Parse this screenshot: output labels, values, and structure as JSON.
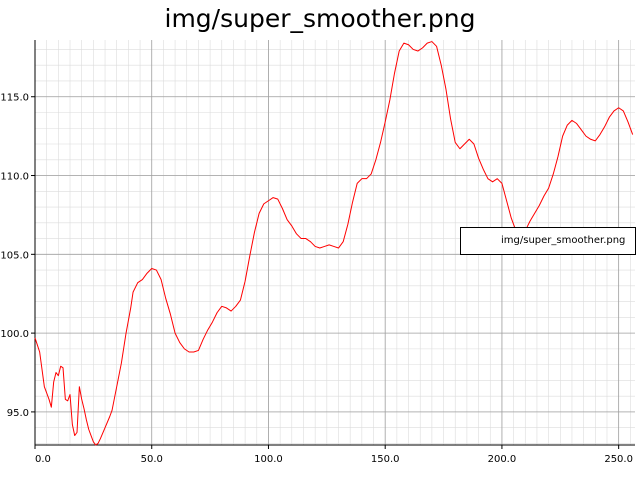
{
  "chart_data": {
    "type": "line",
    "title": "img/super_smoother.png",
    "xlabel": "",
    "ylabel": "",
    "xlim": [
      0,
      257
    ],
    "ylim": [
      92.9,
      118.6
    ],
    "x_ticks": [
      0,
      50,
      100,
      150,
      200,
      250
    ],
    "x_tick_labels": [
      "0.0",
      "50.0",
      "100.0",
      "150.0",
      "200.0",
      "250.0"
    ],
    "y_ticks": [
      95,
      100,
      105,
      110,
      115
    ],
    "y_tick_labels": [
      "95.0",
      "100.0",
      "105.0",
      "110.0",
      "115.0"
    ],
    "grid": true,
    "legend": {
      "position": "right",
      "entries": [
        "img/super_smoother.png"
      ]
    },
    "series": [
      {
        "name": "img/super_smoother.png",
        "color": "#ff0000",
        "points": [
          [
            0,
            99.7
          ],
          [
            2,
            98.8
          ],
          [
            4,
            96.6
          ],
          [
            6,
            95.8
          ],
          [
            7,
            95.3
          ],
          [
            8,
            96.9
          ],
          [
            9,
            97.5
          ],
          [
            10,
            97.3
          ],
          [
            11,
            97.9
          ],
          [
            12,
            97.8
          ],
          [
            13,
            95.8
          ],
          [
            14,
            95.7
          ],
          [
            15,
            96.1
          ],
          [
            16,
            94.2
          ],
          [
            17,
            93.5
          ],
          [
            18,
            93.7
          ],
          [
            19,
            96.6
          ],
          [
            20,
            95.8
          ],
          [
            21,
            95.2
          ],
          [
            22,
            94.5
          ],
          [
            23,
            93.9
          ],
          [
            24,
            93.5
          ],
          [
            25,
            93.1
          ],
          [
            26,
            92.9
          ],
          [
            27,
            93.0
          ],
          [
            28,
            93.3
          ],
          [
            30,
            94.0
          ],
          [
            32,
            94.7
          ],
          [
            33,
            95.1
          ],
          [
            35,
            96.6
          ],
          [
            37,
            98.1
          ],
          [
            39,
            100.0
          ],
          [
            41,
            101.6
          ],
          [
            42,
            102.6
          ],
          [
            44,
            103.2
          ],
          [
            46,
            103.4
          ],
          [
            48,
            103.8
          ],
          [
            50,
            104.1
          ],
          [
            52,
            104.0
          ],
          [
            54,
            103.4
          ],
          [
            56,
            102.2
          ],
          [
            58,
            101.2
          ],
          [
            60,
            100.0
          ],
          [
            62,
            99.4
          ],
          [
            64,
            99.0
          ],
          [
            66,
            98.8
          ],
          [
            68,
            98.8
          ],
          [
            70,
            98.9
          ],
          [
            72,
            99.6
          ],
          [
            74,
            100.2
          ],
          [
            76,
            100.7
          ],
          [
            78,
            101.3
          ],
          [
            80,
            101.7
          ],
          [
            82,
            101.6
          ],
          [
            84,
            101.4
          ],
          [
            86,
            101.7
          ],
          [
            88,
            102.1
          ],
          [
            90,
            103.3
          ],
          [
            92,
            104.9
          ],
          [
            94,
            106.4
          ],
          [
            96,
            107.6
          ],
          [
            98,
            108.2
          ],
          [
            100,
            108.4
          ],
          [
            102,
            108.6
          ],
          [
            104,
            108.5
          ],
          [
            106,
            107.9
          ],
          [
            108,
            107.2
          ],
          [
            110,
            106.8
          ],
          [
            112,
            106.3
          ],
          [
            114,
            106.0
          ],
          [
            116,
            106.0
          ],
          [
            118,
            105.8
          ],
          [
            120,
            105.5
          ],
          [
            122,
            105.4
          ],
          [
            124,
            105.5
          ],
          [
            126,
            105.6
          ],
          [
            128,
            105.5
          ],
          [
            130,
            105.4
          ],
          [
            132,
            105.8
          ],
          [
            134,
            106.9
          ],
          [
            136,
            108.3
          ],
          [
            138,
            109.5
          ],
          [
            140,
            109.8
          ],
          [
            142,
            109.8
          ],
          [
            144,
            110.1
          ],
          [
            146,
            111.0
          ],
          [
            148,
            112.1
          ],
          [
            150,
            113.4
          ],
          [
            152,
            114.8
          ],
          [
            154,
            116.5
          ],
          [
            156,
            117.9
          ],
          [
            158,
            118.4
          ],
          [
            160,
            118.3
          ],
          [
            162,
            118.0
          ],
          [
            164,
            117.9
          ],
          [
            166,
            118.1
          ],
          [
            168,
            118.4
          ],
          [
            170,
            118.5
          ],
          [
            172,
            118.2
          ],
          [
            174,
            117.0
          ],
          [
            176,
            115.5
          ],
          [
            178,
            113.6
          ],
          [
            180,
            112.1
          ],
          [
            182,
            111.7
          ],
          [
            184,
            112.0
          ],
          [
            186,
            112.3
          ],
          [
            188,
            112.0
          ],
          [
            190,
            111.1
          ],
          [
            192,
            110.4
          ],
          [
            194,
            109.8
          ],
          [
            196,
            109.6
          ],
          [
            198,
            109.8
          ],
          [
            200,
            109.5
          ],
          [
            202,
            108.4
          ],
          [
            204,
            107.3
          ],
          [
            206,
            106.5
          ],
          [
            208,
            106.3
          ],
          [
            210,
            106.5
          ],
          [
            212,
            107.1
          ],
          [
            214,
            107.6
          ],
          [
            216,
            108.1
          ],
          [
            218,
            108.7
          ],
          [
            220,
            109.2
          ],
          [
            222,
            110.1
          ],
          [
            224,
            111.2
          ],
          [
            226,
            112.5
          ],
          [
            228,
            113.2
          ],
          [
            230,
            113.5
          ],
          [
            232,
            113.3
          ],
          [
            234,
            112.9
          ],
          [
            236,
            112.5
          ],
          [
            238,
            112.3
          ],
          [
            240,
            112.2
          ],
          [
            242,
            112.6
          ],
          [
            244,
            113.1
          ],
          [
            246,
            113.7
          ],
          [
            248,
            114.1
          ],
          [
            250,
            114.3
          ],
          [
            252,
            114.1
          ],
          [
            254,
            113.4
          ],
          [
            256,
            112.6
          ]
        ]
      }
    ]
  }
}
